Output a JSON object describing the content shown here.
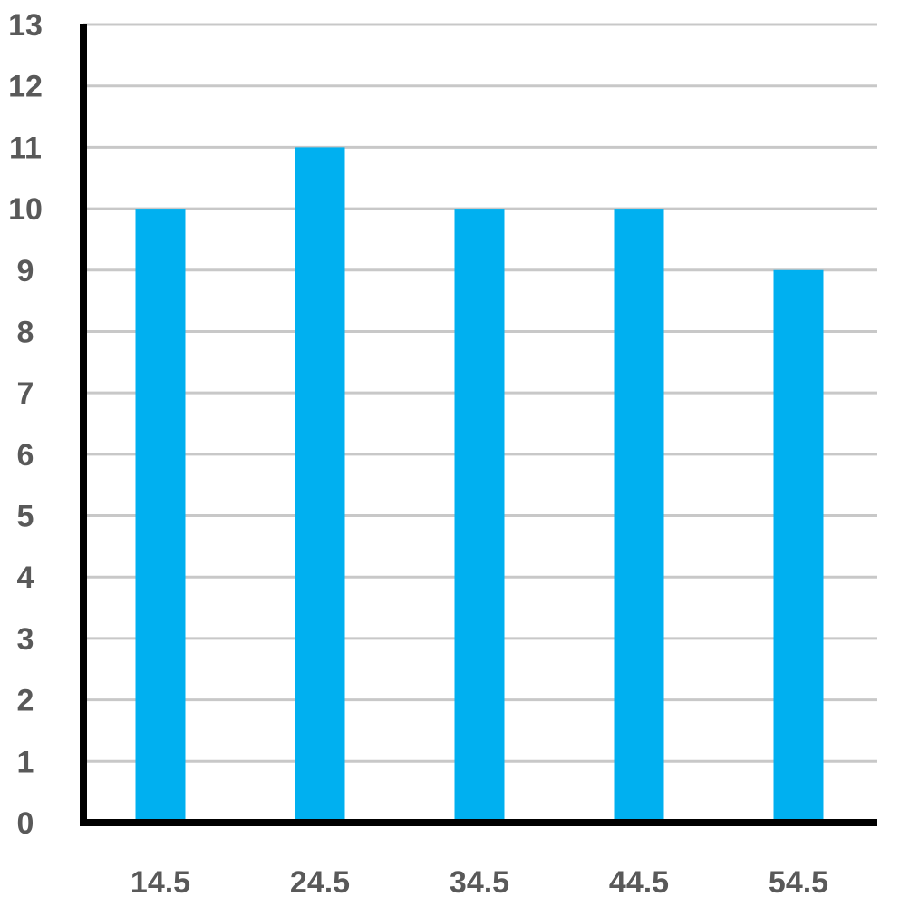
{
  "chart_data": {
    "type": "bar",
    "title": "",
    "xlabel": "",
    "ylabel": "",
    "categories": [
      "14.5",
      "24.5",
      "34.5",
      "44.5",
      "54.5"
    ],
    "values": [
      10,
      11,
      10,
      10,
      9
    ],
    "ylim": [
      0,
      13
    ],
    "yticks": [
      "0",
      "1",
      "2",
      "3",
      "4",
      "5",
      "6",
      "7",
      "8",
      "9",
      "10",
      "11",
      "12",
      "13"
    ],
    "grid": true,
    "legend": "none",
    "colors": {
      "bar": "#00B0F0",
      "grid": "#C8C8C8",
      "axis": "#000000",
      "tick_text": "#595959"
    }
  }
}
